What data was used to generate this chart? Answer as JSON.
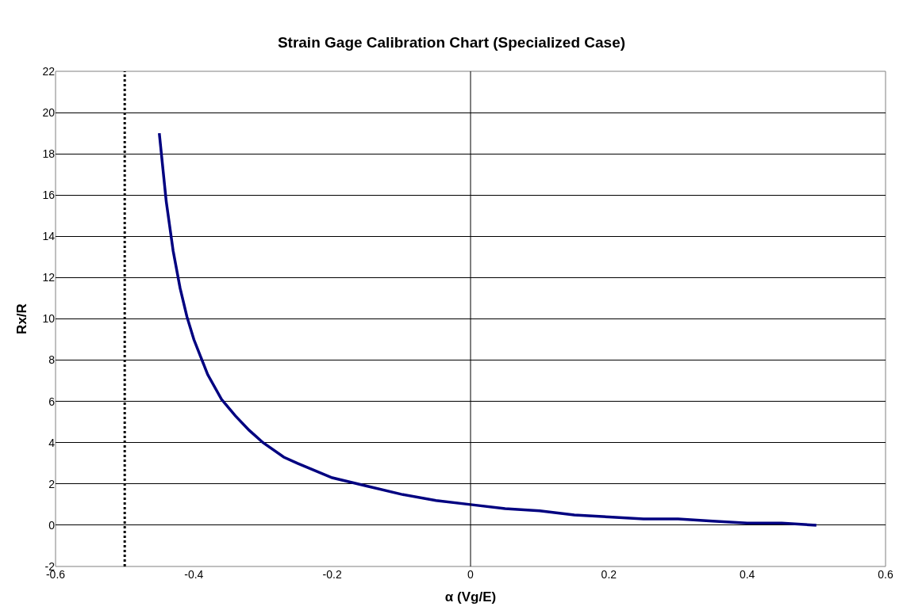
{
  "chart_data": {
    "type": "line",
    "title": "Strain Gage Calibration Chart (Specialized Case)",
    "xlabel": "α (Vg/E)",
    "ylabel": "Rx/R",
    "x": [
      -0.45,
      -0.44,
      -0.43,
      -0.42,
      -0.41,
      -0.4,
      -0.38,
      -0.36,
      -0.34,
      -0.32,
      -0.3,
      -0.27,
      -0.25,
      -0.2,
      -0.15,
      -0.1,
      -0.05,
      0,
      0.05,
      0.1,
      0.15,
      0.2,
      0.25,
      0.3,
      0.35,
      0.4,
      0.45,
      0.5
    ],
    "series": [
      {
        "color": "#000080",
        "values": [
          19,
          15.7,
          13.3,
          11.5,
          10.1,
          9,
          7.3,
          6.1,
          5.3,
          4.6,
          4,
          3.3,
          3,
          2.3,
          1.9,
          1.5,
          1.2,
          1,
          0.8,
          0.7,
          0.5,
          0.4,
          0.3,
          0.3,
          0.2,
          0.1,
          0.1,
          0
        ]
      }
    ],
    "xlim": [
      -0.6,
      0.6
    ],
    "xticks": [
      -0.6,
      -0.4,
      -0.2,
      0,
      0.2,
      0.4,
      0.6
    ],
    "ylim": [
      -2,
      22
    ],
    "yticks": [
      -2,
      0,
      2,
      4,
      6,
      8,
      10,
      12,
      14,
      16,
      18,
      20,
      22
    ],
    "ref_lines": [
      {
        "axis": "x",
        "value": -0.5,
        "color": "#000000",
        "line_style": "dotted"
      },
      {
        "axis": "x",
        "value": 0,
        "color": "#000000",
        "line_style": "solid"
      }
    ],
    "grid": "y",
    "marker": "none",
    "line_style": "solid"
  }
}
